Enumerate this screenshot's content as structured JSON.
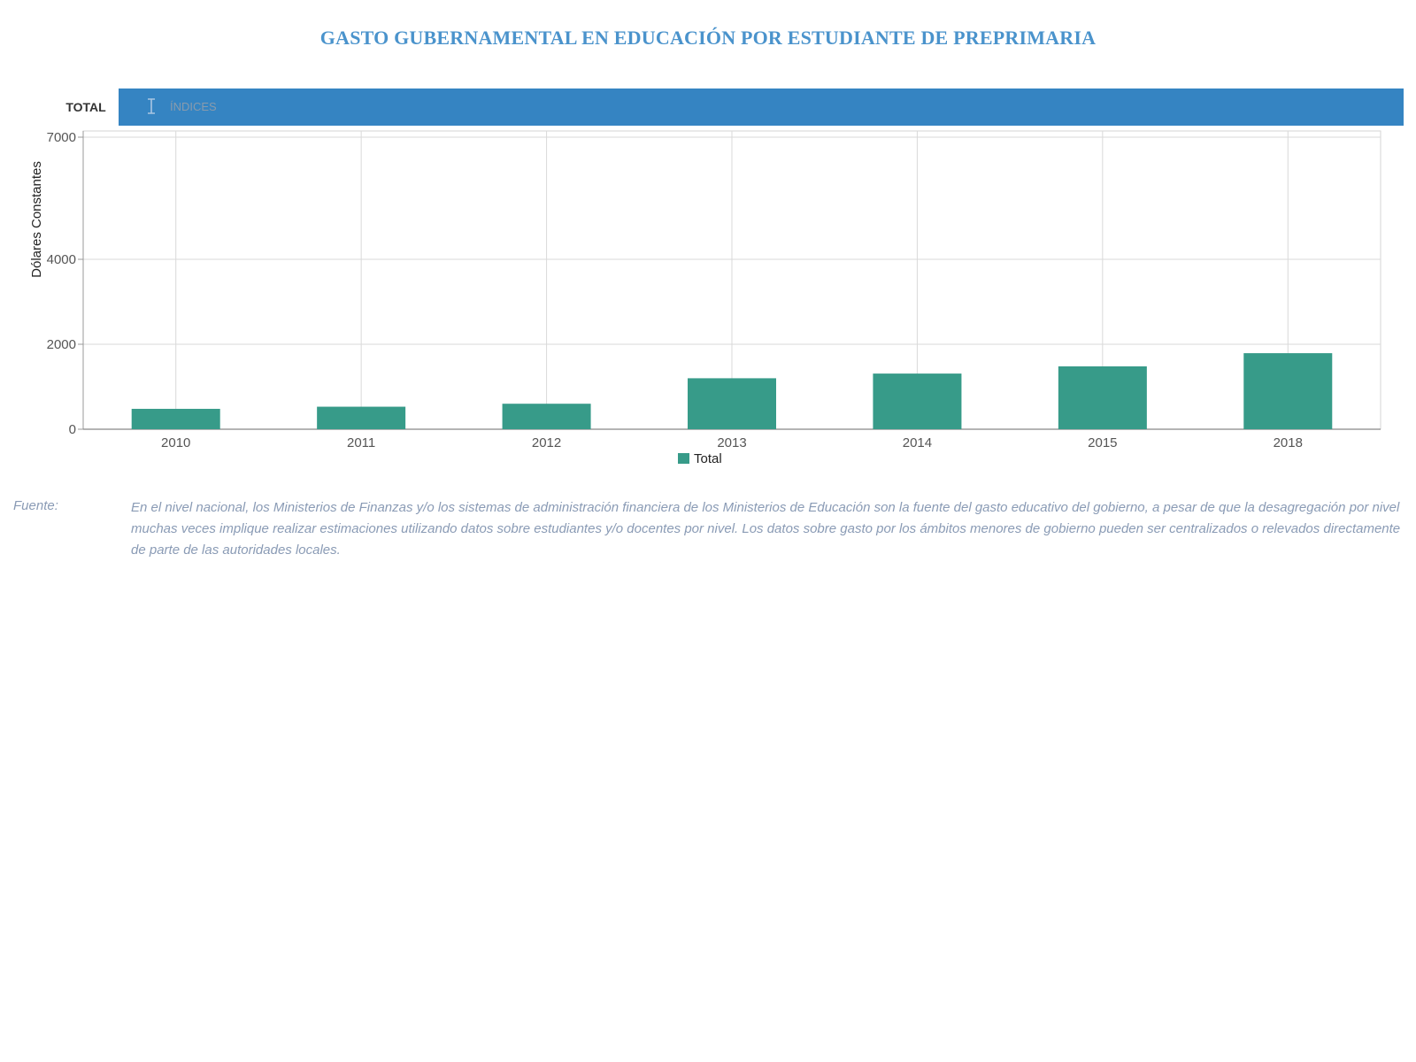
{
  "page": {
    "title": "GASTO GUBERNAMENTAL EN EDUCACIÓN POR ESTUDIANTE DE PREPRIMARIA"
  },
  "tabs": [
    {
      "label": "TOTAL",
      "active": false
    },
    {
      "label": "ÍNDICES",
      "active": true
    }
  ],
  "chart_data": {
    "type": "bar",
    "title": "",
    "xlabel": "",
    "ylabel": "Dólares Constantes",
    "categories": [
      "2010",
      "2011",
      "2012",
      "2013",
      "2014",
      "2015",
      "2018"
    ],
    "series": [
      {
        "name": "Total",
        "values": [
          480,
          530,
          600,
          1200,
          1310,
          1480,
          1790
        ],
        "color": "#379b89"
      }
    ],
    "yticks": [
      0,
      2000,
      4000,
      7000
    ],
    "ylim": [
      0,
      7000
    ],
    "y_tick_positions_are_nonlinear": true,
    "grid": true,
    "legend": "bottom-center"
  },
  "source": {
    "label": "Fuente:",
    "text": "En el nivel nacional, los Ministerios de Finanzas y/o los sistemas de administración financiera de los Ministerios de Educación son la fuente del gasto educativo del gobierno, a pesar de que la desagregación por nivel muchas veces implique realizar estimaciones utilizando datos sobre estudiantes y/o docentes por nivel. Los datos sobre gasto por los ámbitos menores de gobierno pueden ser centralizados o relevados directamente de parte de las autoridades locales."
  },
  "colors": {
    "title": "#4a93cc",
    "tab_active": "#3584c2",
    "bar": "#379b89",
    "source_text": "#8a9bb5"
  }
}
